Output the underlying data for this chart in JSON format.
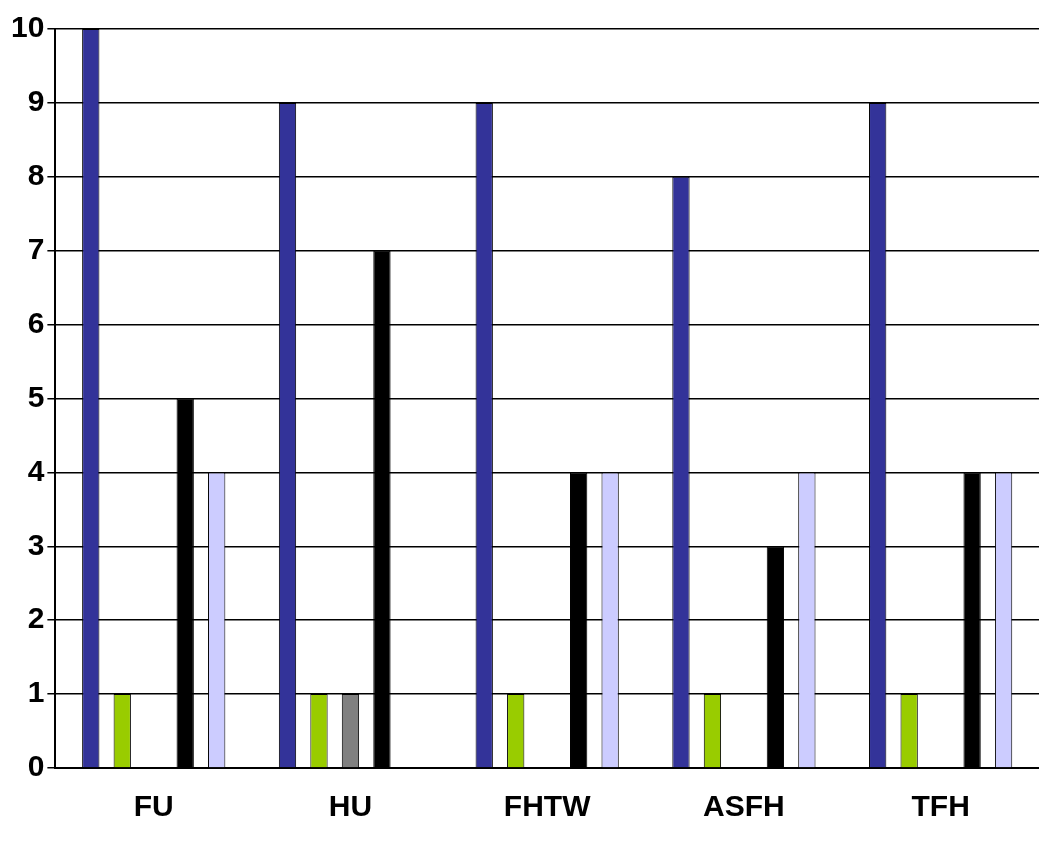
{
  "chart_data": {
    "type": "bar",
    "categories": [
      "FU",
      "HU",
      "FHTW",
      "ASFH",
      "TFH"
    ],
    "series": [
      {
        "color": "#333399",
        "values": [
          10,
          9,
          9,
          8,
          9
        ]
      },
      {
        "color": "#99cc00",
        "values": [
          1,
          1,
          1,
          1,
          1
        ]
      },
      {
        "color": "#808080",
        "values": [
          0,
          1,
          0,
          0,
          0
        ]
      },
      {
        "color": "#000000",
        "values": [
          5,
          7,
          4,
          3,
          4
        ]
      },
      {
        "color": "#ccccff",
        "values": [
          4,
          0,
          4,
          4,
          4
        ]
      }
    ],
    "ylim": [
      0,
      10
    ],
    "yticks": [
      0,
      1,
      2,
      3,
      4,
      5,
      6,
      7,
      8,
      9,
      10
    ],
    "grid": "y",
    "legend": false
  }
}
